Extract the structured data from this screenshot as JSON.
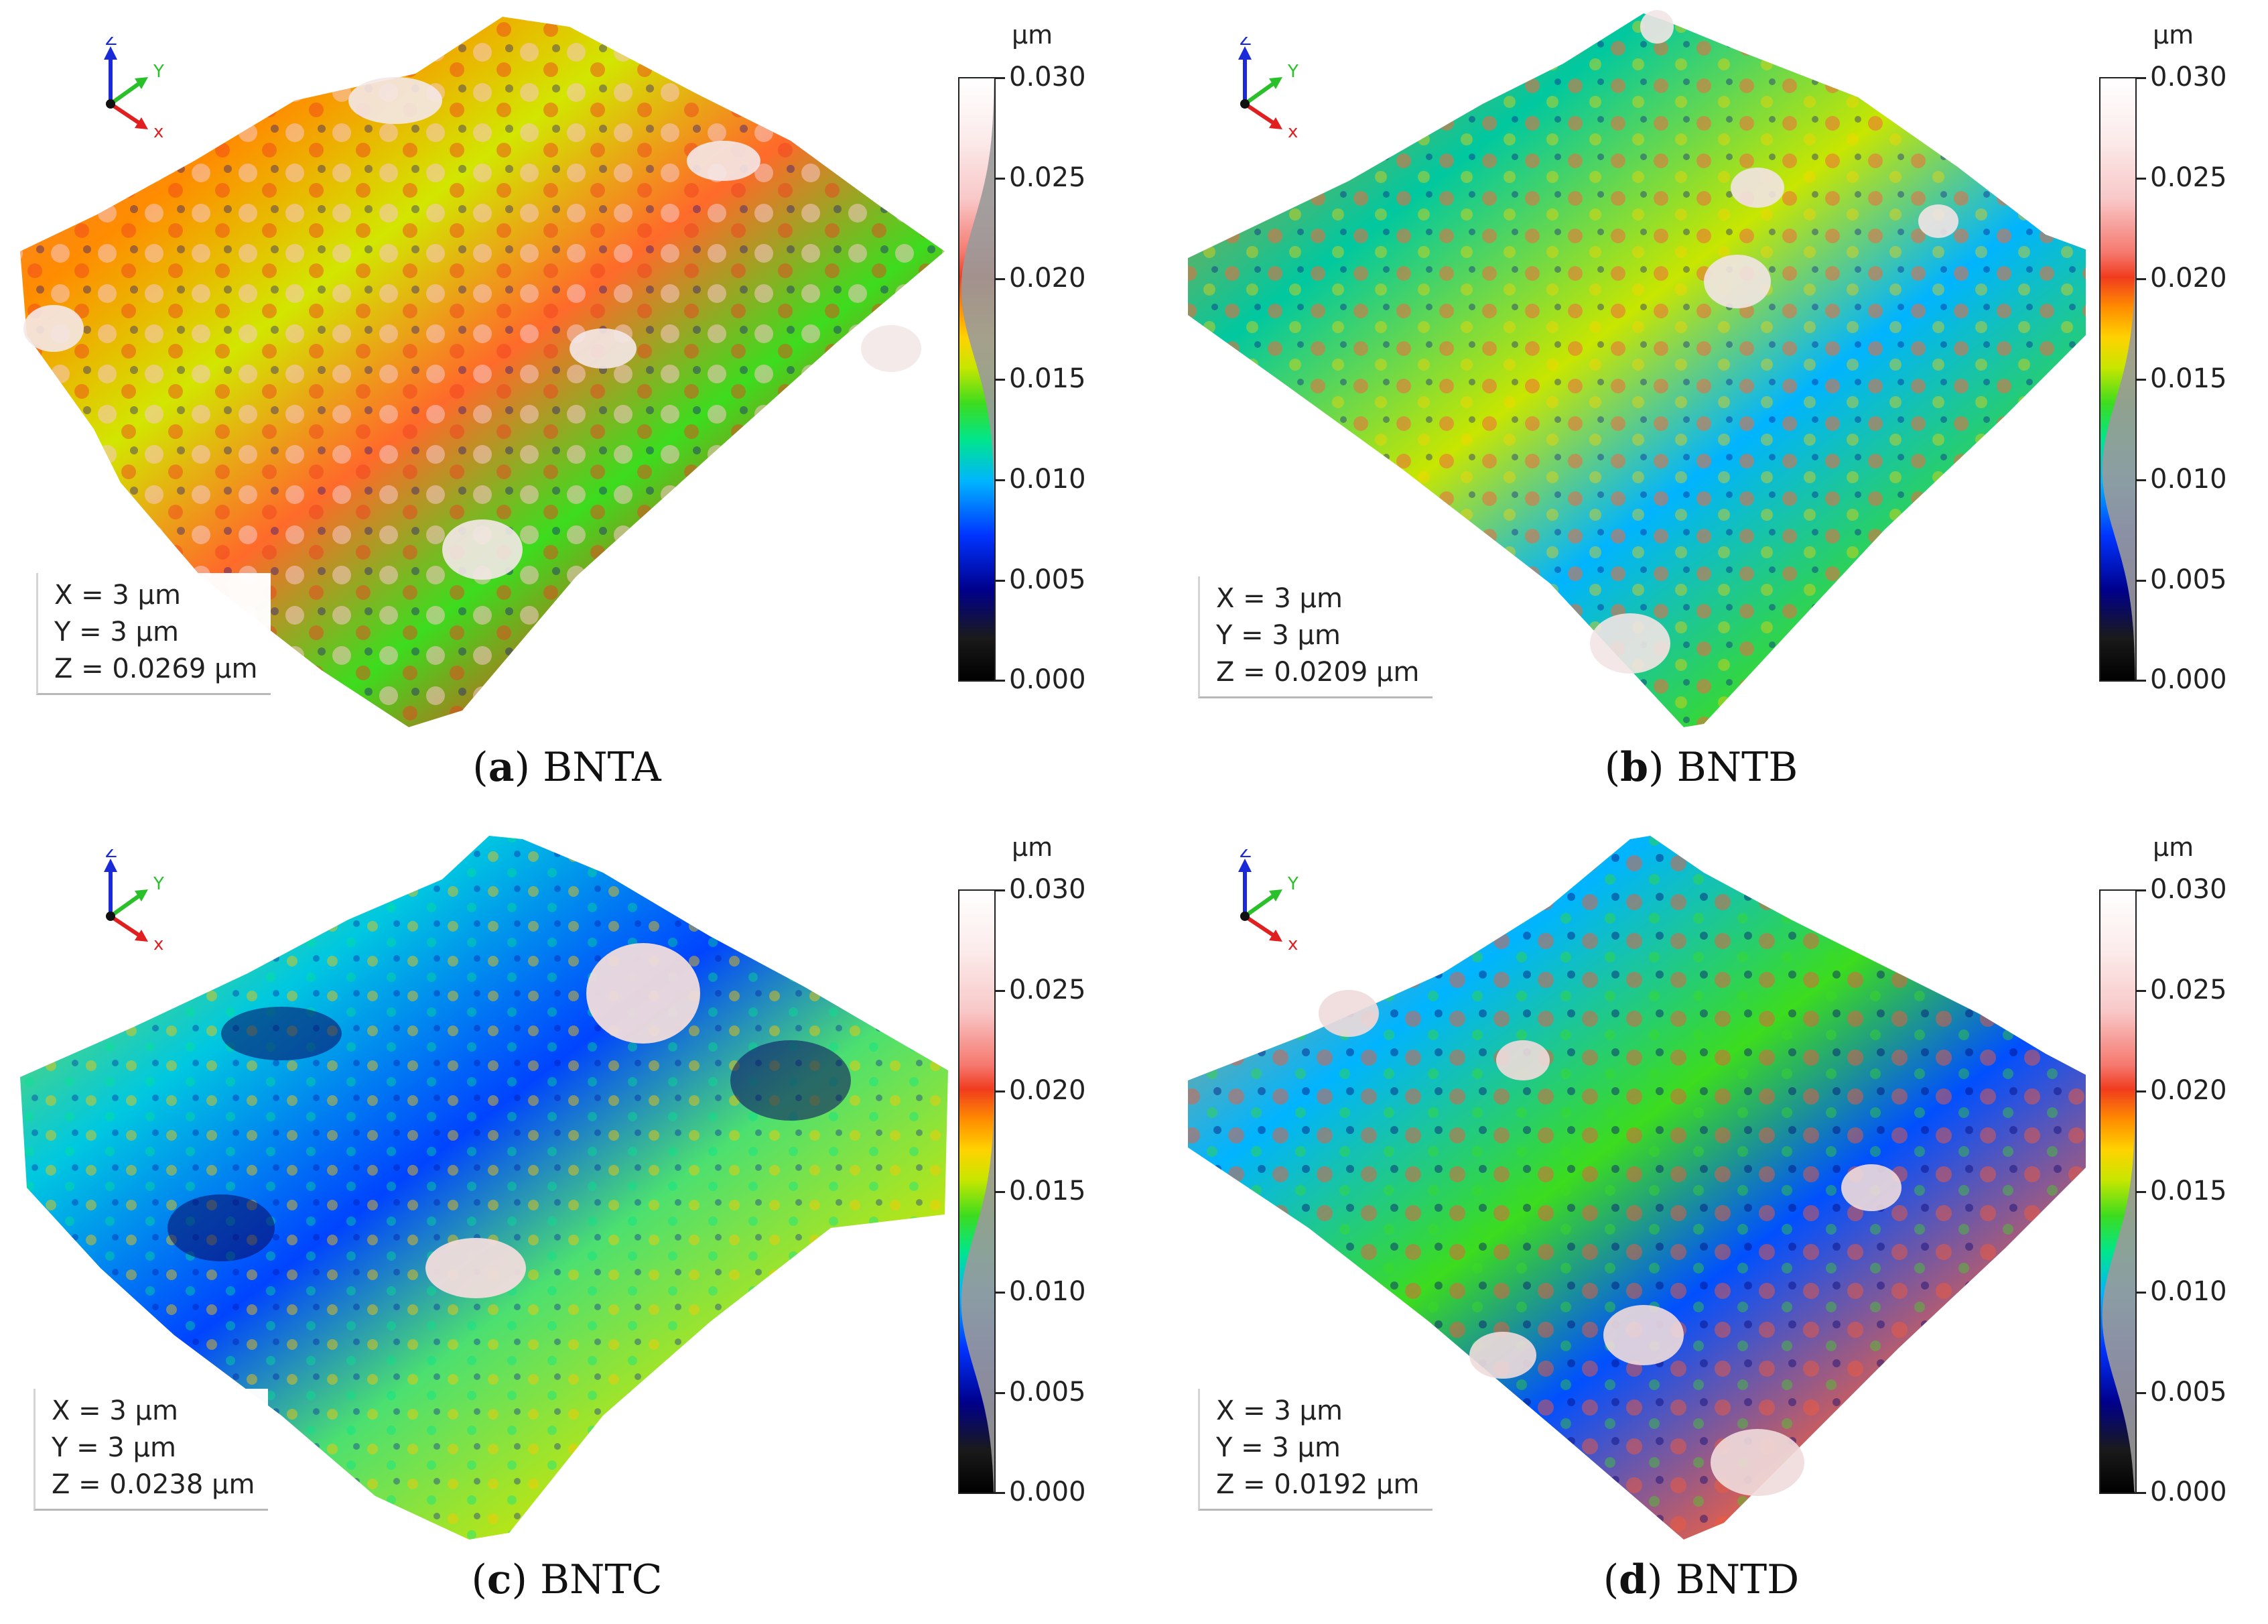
{
  "scale": {
    "unit": "µm",
    "ticks": [
      "0.030",
      "0.025",
      "0.020",
      "0.015",
      "0.010",
      "0.005",
      "0.000"
    ]
  },
  "axes": {
    "x": "x",
    "y": "Y",
    "z": "Z"
  },
  "panels": [
    {
      "letter": "a",
      "sample": "BNTA",
      "x": "X = 3 µm",
      "y": "Y = 3 µm",
      "z": "Z = 0.0269 µm",
      "histogram_center": 0.0195
    },
    {
      "letter": "b",
      "sample": "BNTB",
      "x": "X = 3 µm",
      "y": "Y = 3 µm",
      "z": "Z = 0.0209 µm",
      "histogram_center": 0.0105
    },
    {
      "letter": "c",
      "sample": "BNTC",
      "x": "X = 3 µm",
      "y": "Y = 3 µm",
      "z": "Z = 0.0238 µm",
      "histogram_center": 0.0095
    },
    {
      "letter": "d",
      "sample": "BNTD",
      "x": "X = 3 µm",
      "y": "Y = 3 µm",
      "z": "Z = 0.0192 µm",
      "histogram_center": 0.0088
    }
  ]
}
